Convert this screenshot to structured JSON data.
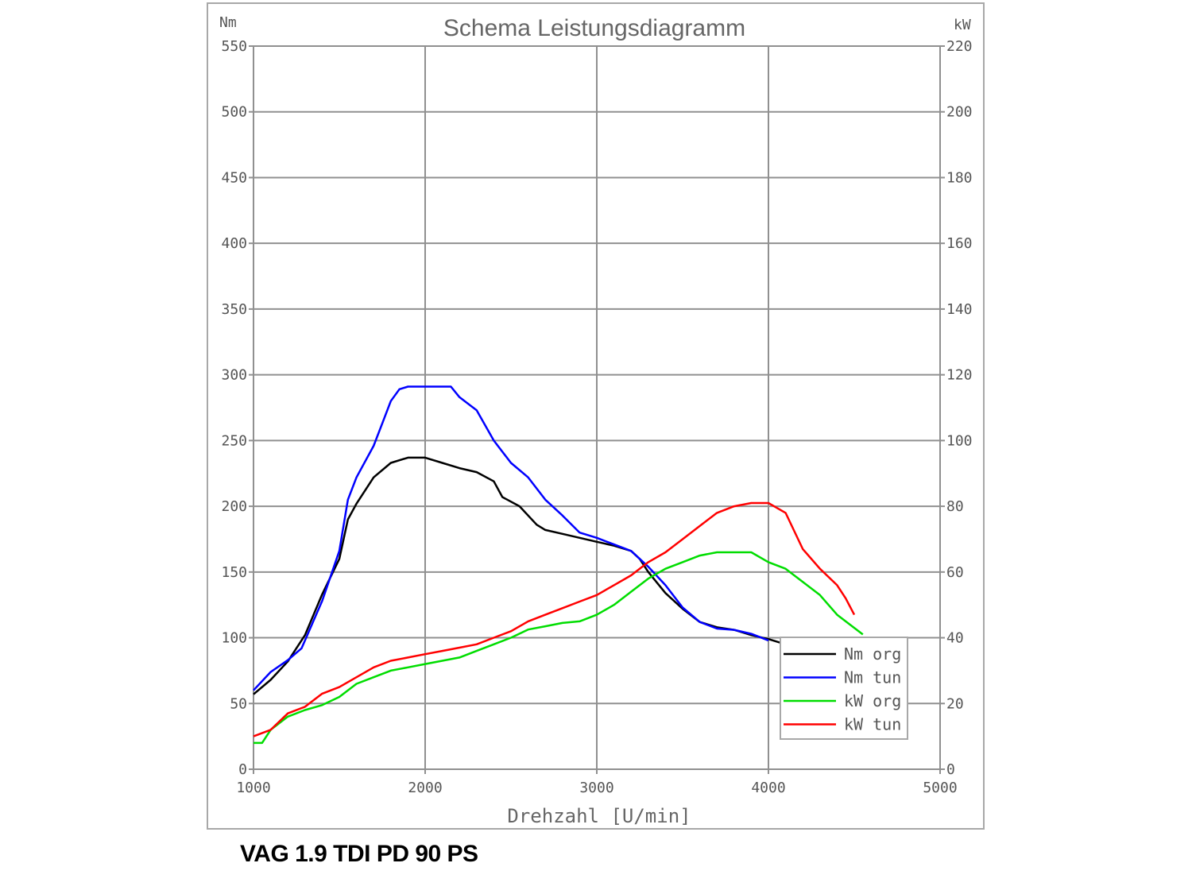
{
  "chart_data": {
    "type": "line",
    "title": "Schema Leistungsdiagramm",
    "xlabel": "Drehzahl [U/min]",
    "ylabel_left": "Nm",
    "ylabel_right": "kW",
    "xlim": [
      1000,
      5000
    ],
    "ylim_left": [
      0,
      550
    ],
    "ylim_right": [
      0,
      220
    ],
    "x_ticks": [
      1000,
      2000,
      3000,
      4000,
      5000
    ],
    "y_ticks_left": [
      0,
      50,
      100,
      150,
      200,
      250,
      300,
      350,
      400,
      450,
      500,
      550
    ],
    "y_ticks_right": [
      0,
      20,
      40,
      60,
      80,
      100,
      120,
      140,
      160,
      180,
      200,
      220
    ],
    "grid": true,
    "legend_position": "bottom-right",
    "series": [
      {
        "name": "Nm org",
        "axis": "left",
        "color": "#000000",
        "points": [
          [
            1000,
            57
          ],
          [
            1100,
            68
          ],
          [
            1200,
            82
          ],
          [
            1300,
            102
          ],
          [
            1400,
            133
          ],
          [
            1500,
            160
          ],
          [
            1550,
            190
          ],
          [
            1600,
            202
          ],
          [
            1700,
            222
          ],
          [
            1800,
            233
          ],
          [
            1900,
            237
          ],
          [
            2000,
            237
          ],
          [
            2100,
            233
          ],
          [
            2200,
            229
          ],
          [
            2300,
            226
          ],
          [
            2400,
            219
          ],
          [
            2450,
            207
          ],
          [
            2550,
            200
          ],
          [
            2650,
            186
          ],
          [
            2700,
            182
          ],
          [
            2800,
            179
          ],
          [
            2900,
            176
          ],
          [
            3000,
            173
          ],
          [
            3100,
            170
          ],
          [
            3200,
            166
          ],
          [
            3250,
            160
          ],
          [
            3300,
            150
          ],
          [
            3400,
            134
          ],
          [
            3500,
            122
          ],
          [
            3600,
            112
          ],
          [
            3700,
            108
          ],
          [
            3800,
            106
          ],
          [
            3900,
            102
          ],
          [
            4000,
            99
          ],
          [
            4100,
            95
          ]
        ]
      },
      {
        "name": "Nm tun",
        "axis": "left",
        "color": "#0000ff",
        "points": [
          [
            1000,
            60
          ],
          [
            1100,
            74
          ],
          [
            1200,
            83
          ],
          [
            1280,
            92
          ],
          [
            1350,
            113
          ],
          [
            1400,
            128
          ],
          [
            1500,
            166
          ],
          [
            1550,
            205
          ],
          [
            1600,
            222
          ],
          [
            1700,
            246
          ],
          [
            1750,
            263
          ],
          [
            1800,
            280
          ],
          [
            1850,
            289
          ],
          [
            1900,
            291
          ],
          [
            2000,
            291
          ],
          [
            2150,
            291
          ],
          [
            2200,
            283
          ],
          [
            2300,
            273
          ],
          [
            2400,
            250
          ],
          [
            2500,
            233
          ],
          [
            2600,
            222
          ],
          [
            2700,
            205
          ],
          [
            2800,
            193
          ],
          [
            2900,
            180
          ],
          [
            3000,
            176
          ],
          [
            3100,
            171
          ],
          [
            3200,
            166
          ],
          [
            3300,
            154
          ],
          [
            3400,
            140
          ],
          [
            3500,
            123
          ],
          [
            3600,
            112
          ],
          [
            3700,
            107
          ],
          [
            3800,
            106
          ],
          [
            3900,
            103
          ],
          [
            4000,
            98
          ]
        ]
      },
      {
        "name": "kW org",
        "axis": "right",
        "color": "#00dd00",
        "points": [
          [
            1000,
            8
          ],
          [
            1050,
            8
          ],
          [
            1100,
            12
          ],
          [
            1200,
            16
          ],
          [
            1300,
            18
          ],
          [
            1400,
            19.5
          ],
          [
            1500,
            22
          ],
          [
            1600,
            26
          ],
          [
            1700,
            28
          ],
          [
            1800,
            30
          ],
          [
            1900,
            31
          ],
          [
            2000,
            32
          ],
          [
            2100,
            33
          ],
          [
            2200,
            34
          ],
          [
            2300,
            36
          ],
          [
            2400,
            38
          ],
          [
            2500,
            40
          ],
          [
            2600,
            42.5
          ],
          [
            2700,
            43.5
          ],
          [
            2800,
            44.5
          ],
          [
            2900,
            45
          ],
          [
            3000,
            47
          ],
          [
            3100,
            50
          ],
          [
            3200,
            54
          ],
          [
            3300,
            58
          ],
          [
            3400,
            61
          ],
          [
            3500,
            63
          ],
          [
            3600,
            65
          ],
          [
            3700,
            66
          ],
          [
            3800,
            66
          ],
          [
            3900,
            66
          ],
          [
            4000,
            63
          ],
          [
            4100,
            61
          ],
          [
            4200,
            57
          ],
          [
            4300,
            53
          ],
          [
            4400,
            47
          ],
          [
            4500,
            43
          ],
          [
            4550,
            41
          ]
        ]
      },
      {
        "name": "kW tun",
        "axis": "right",
        "color": "#ff0000",
        "points": [
          [
            1000,
            10
          ],
          [
            1100,
            12
          ],
          [
            1200,
            17
          ],
          [
            1300,
            19
          ],
          [
            1400,
            23
          ],
          [
            1500,
            25
          ],
          [
            1600,
            28
          ],
          [
            1700,
            31
          ],
          [
            1800,
            33
          ],
          [
            1900,
            34
          ],
          [
            2000,
            35
          ],
          [
            2100,
            36
          ],
          [
            2200,
            37
          ],
          [
            2300,
            38
          ],
          [
            2400,
            40
          ],
          [
            2500,
            42
          ],
          [
            2600,
            45
          ],
          [
            2700,
            47
          ],
          [
            2800,
            49
          ],
          [
            2900,
            51
          ],
          [
            3000,
            53
          ],
          [
            3100,
            56
          ],
          [
            3200,
            59
          ],
          [
            3300,
            63
          ],
          [
            3400,
            66
          ],
          [
            3500,
            70
          ],
          [
            3600,
            74
          ],
          [
            3700,
            78
          ],
          [
            3800,
            80
          ],
          [
            3900,
            81
          ],
          [
            4000,
            81
          ],
          [
            4100,
            78
          ],
          [
            4200,
            67
          ],
          [
            4300,
            61
          ],
          [
            4400,
            56
          ],
          [
            4450,
            52
          ],
          [
            4500,
            47
          ]
        ]
      }
    ]
  },
  "caption": "VAG 1.9 TDI PD 90 PS"
}
